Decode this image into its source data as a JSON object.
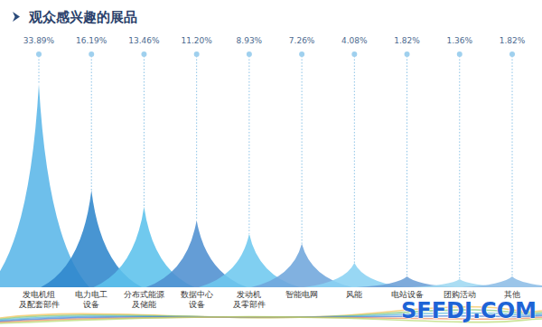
{
  "chart_data": {
    "type": "bar",
    "title": "观众感兴趣的展品",
    "categories": [
      "发电机组\n及配套部件",
      "电力电工\n设备",
      "分布式能源\n及储能",
      "数据中心\n设备",
      "发动机\n及零部件",
      "智能电网",
      "风能",
      "电站设备",
      "团购活动",
      "其他"
    ],
    "values": [
      33.89,
      16.19,
      13.46,
      11.2,
      8.93,
      7.26,
      4.08,
      1.82,
      1.36,
      1.82
    ],
    "value_labels": [
      "33.89%",
      "16.19%",
      "13.46%",
      "11.20%",
      "8.93%",
      "7.26%",
      "4.08%",
      "1.82%",
      "1.36%",
      "1.82%"
    ],
    "colors": [
      "#5ab6e8",
      "#2f86cc",
      "#5cc2ec",
      "#4e90d0",
      "#6ec8ef",
      "#6fa6dc",
      "#8ad2f2",
      "#6c9fd6",
      "#9fd8f1",
      "#8dbde6"
    ],
    "data_labels": true
  },
  "watermark": "SFFDJ.COM"
}
